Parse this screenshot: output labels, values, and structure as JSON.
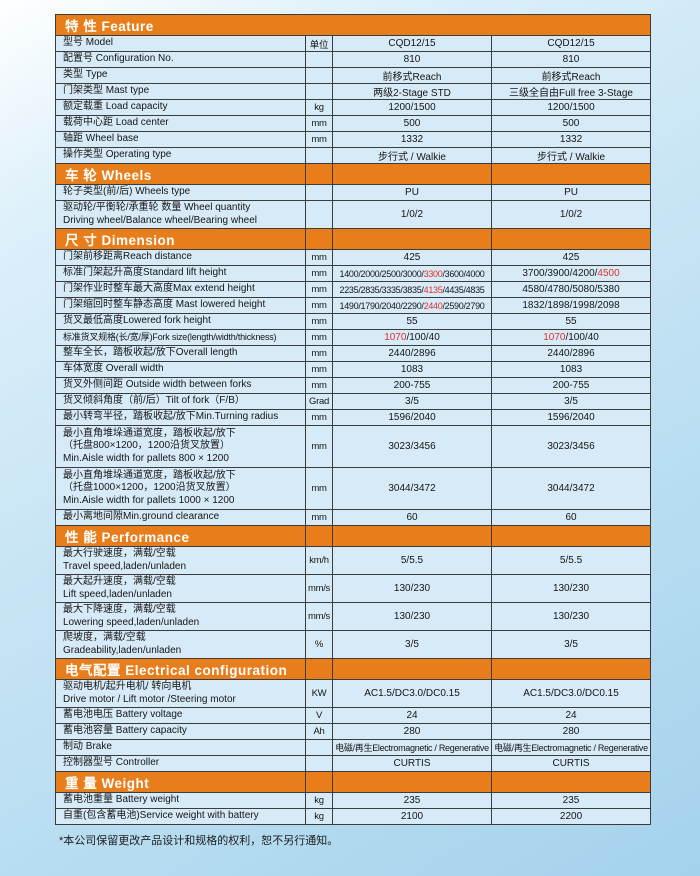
{
  "colors": {
    "accent_orange": "#e87d1b",
    "highlight_red": "#dd3327",
    "cell_blue": "#d7eaf7",
    "grid_border": "#3c3c3c"
  },
  "footnote": "*本公司保留更改产品设计和规格的权利，恕不另行通知。",
  "table": {
    "sections": [
      {
        "id": "feature",
        "header": "特 性 Feature",
        "rows": [
          {
            "label": [
              "型号 Model"
            ],
            "unit": "单位",
            "col1": {
              "segs": [
                {
                  "t": "CQD12/15"
                }
              ]
            },
            "col2": {
              "segs": [
                {
                  "t": "CQD12/15"
                }
              ]
            }
          },
          {
            "label": [
              "配置号 Configuration No."
            ],
            "unit": "",
            "col1": {
              "segs": [
                {
                  "t": "810"
                }
              ]
            },
            "col2": {
              "segs": [
                {
                  "t": "810"
                }
              ]
            }
          },
          {
            "label": [
              "类型 Type"
            ],
            "unit": "",
            "col1": {
              "segs": [
                {
                  "t": "前移式Reach"
                }
              ]
            },
            "col2": {
              "segs": [
                {
                  "t": "前移式Reach"
                }
              ]
            }
          },
          {
            "label": [
              "门架类型 Mast type"
            ],
            "unit": "",
            "col1": {
              "segs": [
                {
                  "t": "两级2-Stage STD"
                }
              ]
            },
            "col2": {
              "segs": [
                {
                  "t": "三级全自由Full free 3-Stage"
                }
              ]
            }
          },
          {
            "label": [
              "额定载重 Load capacity"
            ],
            "unit": "kg",
            "col1": {
              "segs": [
                {
                  "t": "1200/1500"
                }
              ]
            },
            "col2": {
              "segs": [
                {
                  "t": "1200/1500"
                }
              ]
            }
          },
          {
            "label": [
              "载荷中心距 Load center"
            ],
            "unit": "mm",
            "col1": {
              "segs": [
                {
                  "t": "500"
                }
              ]
            },
            "col2": {
              "segs": [
                {
                  "t": "500"
                }
              ]
            }
          },
          {
            "label": [
              "轴距 Wheel base"
            ],
            "unit": "mm",
            "col1": {
              "segs": [
                {
                  "t": "1332"
                }
              ]
            },
            "col2": {
              "segs": [
                {
                  "t": "1332"
                }
              ]
            }
          },
          {
            "label": [
              "操作类型 Operating type"
            ],
            "unit": "",
            "col1": {
              "segs": [
                {
                  "t": "步行式 / Walkie"
                }
              ]
            },
            "col2": {
              "segs": [
                {
                  "t": "步行式 / Walkie"
                }
              ]
            }
          }
        ]
      },
      {
        "id": "wheels",
        "header": "车 轮 Wheels",
        "rows": [
          {
            "label": [
              "轮子类型(前/后) Wheels type"
            ],
            "unit": "",
            "col1": {
              "segs": [
                {
                  "t": "PU"
                }
              ]
            },
            "col2": {
              "segs": [
                {
                  "t": "PU"
                }
              ]
            }
          },
          {
            "label": [
              "驱动轮/平衡轮/承重轮 数量 Wheel quantity",
              "Driving wheel/Balance wheel/Bearing wheel"
            ],
            "unit": "",
            "col1": {
              "segs": [
                {
                  "t": "1/0/2"
                }
              ]
            },
            "col2": {
              "segs": [
                {
                  "t": "1/0/2"
                }
              ]
            }
          }
        ]
      },
      {
        "id": "dimension",
        "header": "尺 寸 Dimension",
        "rows": [
          {
            "label": [
              "门架前移距离Reach distance"
            ],
            "unit": "mm",
            "col1": {
              "segs": [
                {
                  "t": "425"
                }
              ]
            },
            "col2": {
              "segs": [
                {
                  "t": "425"
                }
              ]
            }
          },
          {
            "label": [
              "标准门架起升高度Standard lift height"
            ],
            "unit": "mm",
            "col1": {
              "small": true,
              "segs": [
                {
                  "t": "1400/2000/2500/3000/"
                },
                {
                  "t": "3300",
                  "red": true
                },
                {
                  "t": "/3600/4000"
                }
              ]
            },
            "col2": {
              "segs": [
                {
                  "t": "3700/3900/4200/"
                },
                {
                  "t": "4500",
                  "red": true
                }
              ]
            }
          },
          {
            "label": [
              "门架作业时整车最大高度Max extend height"
            ],
            "unit": "mm",
            "col1": {
              "small": true,
              "segs": [
                {
                  "t": "2235/2835/3335/3835/"
                },
                {
                  "t": "4135",
                  "red": true
                },
                {
                  "t": "/4435/4835"
                }
              ]
            },
            "col2": {
              "segs": [
                {
                  "t": "4580/4780/5080/5380"
                }
              ]
            }
          },
          {
            "label": [
              "门架缩回时整车静态高度 Mast lowered height"
            ],
            "unit": "mm",
            "col1": {
              "small": true,
              "segs": [
                {
                  "t": "1490/1790/2040/2290/"
                },
                {
                  "t": "2440",
                  "red": true
                },
                {
                  "t": "/2590/2790"
                }
              ]
            },
            "col2": {
              "segs": [
                {
                  "t": "1832/1898/1998/2098"
                }
              ]
            }
          },
          {
            "label": [
              "货叉最低高度Lowered fork height"
            ],
            "unit": "mm",
            "col1": {
              "segs": [
                {
                  "t": "55"
                }
              ]
            },
            "col2": {
              "segs": [
                {
                  "t": "55"
                }
              ]
            }
          },
          {
            "label": [
              "标准货叉规格(长/宽/厚)Fork size(length/width/thickness)"
            ],
            "tight": true,
            "unit": "mm",
            "col1": {
              "segs": [
                {
                  "t": "1070",
                  "red": true
                },
                {
                  "t": "/100/40"
                }
              ]
            },
            "col2": {
              "segs": [
                {
                  "t": "1070",
                  "red": true
                },
                {
                  "t": "/100/40"
                }
              ]
            }
          },
          {
            "label": [
              "整车全长，踏板收起/放下Overall length"
            ],
            "unit": "mm",
            "col1": {
              "segs": [
                {
                  "t": "2440/2896"
                }
              ]
            },
            "col2": {
              "segs": [
                {
                  "t": "2440/2896"
                }
              ]
            }
          },
          {
            "label": [
              "车体宽度 Overall width"
            ],
            "unit": "mm",
            "col1": {
              "segs": [
                {
                  "t": "1083"
                }
              ]
            },
            "col2": {
              "segs": [
                {
                  "t": "1083"
                }
              ]
            }
          },
          {
            "label": [
              "货叉外侧间距 Outside width between forks"
            ],
            "unit": "mm",
            "col1": {
              "segs": [
                {
                  "t": "200-755"
                }
              ]
            },
            "col2": {
              "segs": [
                {
                  "t": "200-755"
                }
              ]
            }
          },
          {
            "label": [
              "货叉倾斜角度（前/后）Tilt of fork（F/B）"
            ],
            "unit": "Grad",
            "col1": {
              "segs": [
                {
                  "t": "3/5"
                }
              ]
            },
            "col2": {
              "segs": [
                {
                  "t": "3/5"
                }
              ]
            }
          },
          {
            "label": [
              "最小转弯半径，踏板收起/放下Min.Turning radius"
            ],
            "unit": "mm",
            "col1": {
              "segs": [
                {
                  "t": "1596/2040"
                }
              ]
            },
            "col2": {
              "segs": [
                {
                  "t": "1596/2040"
                }
              ]
            }
          },
          {
            "label": [
              "最小直角堆垛通道宽度，踏板收起/放下",
              "（托盘800×1200，1200沿货叉放置）",
              "Min.Aisle width for pallets 800 × 1200"
            ],
            "unit": "mm",
            "col1": {
              "segs": [
                {
                  "t": "3023/3456"
                }
              ]
            },
            "col2": {
              "segs": [
                {
                  "t": "3023/3456"
                }
              ]
            }
          },
          {
            "label": [
              "最小直角堆垛通道宽度，踏板收起/放下",
              "（托盘1000×1200，1200沿货叉放置）",
              "Min.Aisle width for pallets 1000 × 1200"
            ],
            "unit": "mm",
            "col1": {
              "segs": [
                {
                  "t": "3044/3472"
                }
              ]
            },
            "col2": {
              "segs": [
                {
                  "t": "3044/3472"
                }
              ]
            }
          },
          {
            "label": [
              "最小离地间隙Min.ground clearance"
            ],
            "unit": "mm",
            "col1": {
              "segs": [
                {
                  "t": "60"
                }
              ]
            },
            "col2": {
              "segs": [
                {
                  "t": "60"
                }
              ]
            }
          }
        ]
      },
      {
        "id": "performance",
        "header": "性 能 Performance",
        "rows": [
          {
            "label": [
              "最大行驶速度，满载/空载",
              "Travel speed,laden/unladen"
            ],
            "unit": "km/h",
            "col1": {
              "segs": [
                {
                  "t": "5/5.5"
                }
              ]
            },
            "col2": {
              "segs": [
                {
                  "t": "5/5.5"
                }
              ]
            }
          },
          {
            "label": [
              "最大起升速度，满载/空载",
              "Lift speed,laden/unladen"
            ],
            "unit": "mm/s",
            "col1": {
              "segs": [
                {
                  "t": "130/230"
                }
              ]
            },
            "col2": {
              "segs": [
                {
                  "t": "130/230"
                }
              ]
            }
          },
          {
            "label": [
              "最大下降速度，满载/空载",
              "Lowering speed,laden/unladen"
            ],
            "unit": "mm/s",
            "col1": {
              "segs": [
                {
                  "t": "130/230"
                }
              ]
            },
            "col2": {
              "segs": [
                {
                  "t": "130/230"
                }
              ]
            }
          },
          {
            "label": [
              "爬坡度，满载/空载",
              "Gradeability,laden/unladen"
            ],
            "unit": "%",
            "col1": {
              "segs": [
                {
                  "t": "3/5"
                }
              ]
            },
            "col2": {
              "segs": [
                {
                  "t": "3/5"
                }
              ]
            }
          }
        ]
      },
      {
        "id": "electrical",
        "header": "电气配置 Electrical configuration",
        "rows": [
          {
            "label": [
              "驱动电机/起升电机/ 转向电机",
              "Drive motor / Lift motor /Steering motor"
            ],
            "unit": "KW",
            "col1": {
              "segs": [
                {
                  "t": "AC1.5/DC3.0/DC0.15"
                }
              ]
            },
            "col2": {
              "segs": [
                {
                  "t": "AC1.5/DC3.0/DC0.15"
                }
              ]
            }
          },
          {
            "label": [
              "蓄电池电压 Battery voltage"
            ],
            "unit": "V",
            "col1": {
              "segs": [
                {
                  "t": "24"
                }
              ]
            },
            "col2": {
              "segs": [
                {
                  "t": "24"
                }
              ]
            }
          },
          {
            "label": [
              "蓄电池容量 Battery capacity"
            ],
            "unit": "Ah",
            "col1": {
              "segs": [
                {
                  "t": "280"
                }
              ]
            },
            "col2": {
              "segs": [
                {
                  "t": "280"
                }
              ]
            }
          },
          {
            "label": [
              "制动 Brake"
            ],
            "unit": "",
            "col1": {
              "small": true,
              "segs": [
                {
                  "t": "电磁/再生Electromagnetic / Regenerative"
                }
              ]
            },
            "col2": {
              "small": true,
              "segs": [
                {
                  "t": "电磁/再生Electromagnetic / Regenerative"
                }
              ]
            }
          },
          {
            "label": [
              "控制器型号 Controller"
            ],
            "unit": "",
            "col1": {
              "segs": [
                {
                  "t": "CURTIS"
                }
              ]
            },
            "col2": {
              "segs": [
                {
                  "t": "CURTIS"
                }
              ]
            }
          }
        ]
      },
      {
        "id": "weight",
        "header": "重 量 Weight",
        "rows": [
          {
            "label": [
              "蓄电池重量 Battery weight"
            ],
            "unit": "kg",
            "col1": {
              "segs": [
                {
                  "t": "235"
                }
              ]
            },
            "col2": {
              "segs": [
                {
                  "t": "235"
                }
              ]
            }
          },
          {
            "label": [
              "自重(包含蓄电池)Service weight with battery"
            ],
            "unit": "kg",
            "col1": {
              "segs": [
                {
                  "t": "2100"
                }
              ]
            },
            "col2": {
              "segs": [
                {
                  "t": "2200"
                }
              ]
            }
          }
        ]
      }
    ]
  }
}
